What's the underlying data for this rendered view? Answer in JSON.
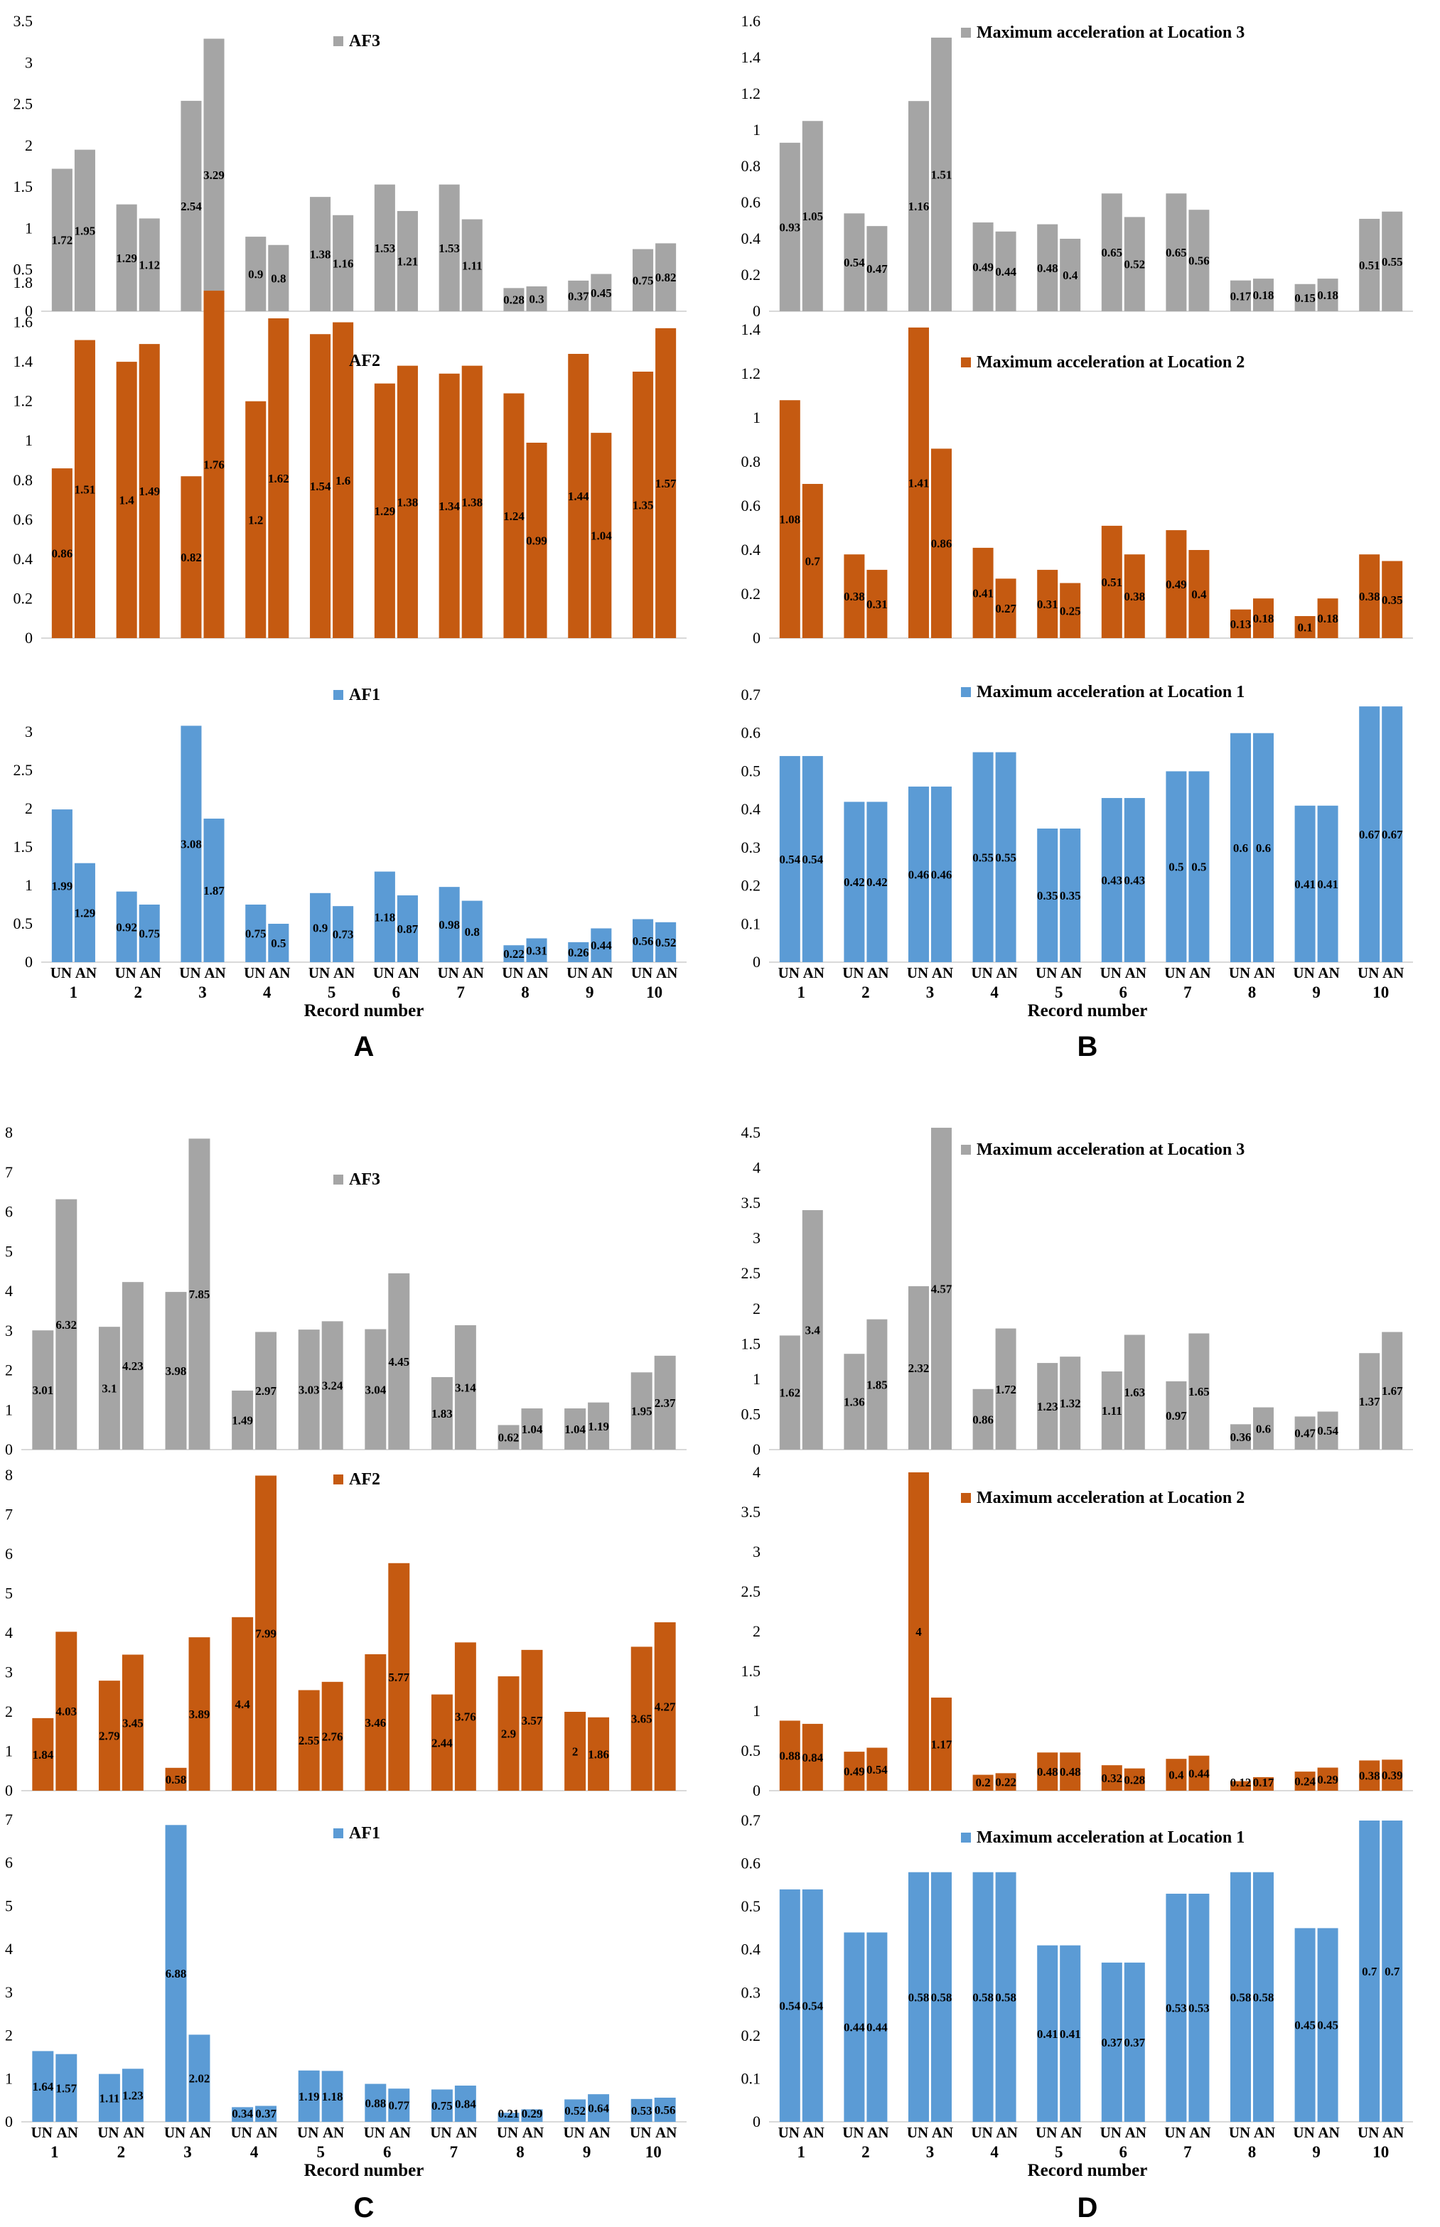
{
  "colors": {
    "gray": "#a5a5a5",
    "orange": "#c55a11",
    "blue": "#5b9bd5"
  },
  "chart_data": [
    {
      "panel": "A",
      "type": "bar",
      "title": "AF3",
      "color": "gray",
      "ylim": [
        0,
        3.5
      ],
      "ticks": [
        "0",
        "0.5",
        "1",
        "1.5",
        "2",
        "2.5",
        "3",
        "3.5"
      ],
      "categories": [
        "1",
        "2",
        "3",
        "4",
        "5",
        "6",
        "7",
        "8",
        "9",
        "10"
      ],
      "series": [
        {
          "name": "UN",
          "values": [
            1.72,
            1.29,
            2.54,
            0.9,
            1.38,
            1.53,
            1.53,
            0.28,
            0.37,
            0.75
          ]
        },
        {
          "name": "AN",
          "values": [
            1.95,
            1.12,
            3.29,
            0.8,
            1.16,
            1.21,
            1.11,
            0.3,
            0.45,
            0.82
          ]
        }
      ]
    },
    {
      "panel": "A",
      "type": "bar",
      "title": "AF2",
      "color": "orange",
      "ylim": [
        0,
        1.8
      ],
      "ticks": [
        "0",
        "0.2",
        "0.4",
        "0.6",
        "0.8",
        "1",
        "1.2",
        "1.4",
        "1.6",
        "1.8"
      ],
      "categories": [
        "1",
        "2",
        "3",
        "4",
        "5",
        "6",
        "7",
        "8",
        "9",
        "10"
      ],
      "series": [
        {
          "name": "UN",
          "values": [
            0.86,
            1.4,
            0.82,
            1.2,
            1.54,
            1.29,
            1.34,
            1.24,
            1.44,
            1.35
          ]
        },
        {
          "name": "AN",
          "values": [
            1.51,
            1.49,
            1.76,
            1.62,
            1.6,
            1.38,
            1.38,
            0.99,
            1.04,
            1.57
          ]
        }
      ]
    },
    {
      "panel": "A",
      "type": "bar",
      "title": "AF1",
      "color": "blue",
      "ylim": [
        0,
        3.5
      ],
      "ticks": [
        "0",
        "0.5",
        "1",
        "1.5",
        "2",
        "2.5",
        "3"
      ],
      "xlabel": "Record number",
      "categories": [
        "1",
        "2",
        "3",
        "4",
        "5",
        "6",
        "7",
        "8",
        "9",
        "10"
      ],
      "series": [
        {
          "name": "UN",
          "values": [
            1.99,
            0.92,
            3.08,
            0.75,
            0.9,
            1.18,
            0.98,
            0.22,
            0.26,
            0.56
          ]
        },
        {
          "name": "AN",
          "values": [
            1.29,
            0.75,
            1.87,
            0.5,
            0.73,
            0.87,
            0.8,
            0.31,
            0.44,
            0.52
          ]
        }
      ]
    },
    {
      "panel": "B",
      "type": "bar",
      "title": "Maximum acceleration at Location 3",
      "color": "gray",
      "ylim": [
        0,
        1.6
      ],
      "ticks": [
        "0",
        "0.2",
        "0.4",
        "0.6",
        "0.8",
        "1",
        "1.2",
        "1.4",
        "1.6"
      ],
      "categories": [
        "1",
        "2",
        "3",
        "4",
        "5",
        "6",
        "7",
        "8",
        "9",
        "10"
      ],
      "series": [
        {
          "name": "UN",
          "values": [
            0.93,
            0.54,
            1.16,
            0.49,
            0.48,
            0.65,
            0.65,
            0.17,
            0.15,
            0.51
          ]
        },
        {
          "name": "AN",
          "values": [
            1.05,
            0.47,
            1.51,
            0.44,
            0.4,
            0.52,
            0.56,
            0.18,
            0.18,
            0.55
          ]
        }
      ]
    },
    {
      "panel": "B",
      "type": "bar",
      "title": "Maximum acceleration at Location 2",
      "color": "orange",
      "ylim": [
        0,
        1.4
      ],
      "ticks": [
        "0",
        "0.2",
        "0.4",
        "0.6",
        "0.8",
        "1",
        "1.2",
        "1.4"
      ],
      "categories": [
        "1",
        "2",
        "3",
        "4",
        "5",
        "6",
        "7",
        "8",
        "9",
        "10"
      ],
      "series": [
        {
          "name": "UN",
          "values": [
            1.08,
            0.38,
            1.41,
            0.41,
            0.31,
            0.51,
            0.49,
            0.13,
            0.1,
            0.38
          ]
        },
        {
          "name": "AN",
          "values": [
            0.7,
            0.31,
            0.86,
            0.27,
            0.25,
            0.38,
            0.4,
            0.18,
            0.18,
            0.35
          ]
        }
      ]
    },
    {
      "panel": "B",
      "type": "bar",
      "title": "Maximum acceleration at Location 1",
      "color": "blue",
      "ylim": [
        0,
        0.7
      ],
      "ticks": [
        "0",
        "0.1",
        "0.2",
        "0.3",
        "0.4",
        "0.5",
        "0.6",
        "0.7"
      ],
      "xlabel": "Record number",
      "categories": [
        "1",
        "2",
        "3",
        "4",
        "5",
        "6",
        "7",
        "8",
        "9",
        "10"
      ],
      "series": [
        {
          "name": "UN",
          "values": [
            0.54,
            0.42,
            0.46,
            0.55,
            0.35,
            0.43,
            0.5,
            0.6,
            0.41,
            0.67
          ]
        },
        {
          "name": "AN",
          "values": [
            0.54,
            0.42,
            0.46,
            0.55,
            0.35,
            0.43,
            0.5,
            0.6,
            0.41,
            0.67
          ]
        }
      ]
    },
    {
      "panel": "C",
      "type": "bar",
      "title": "AF3",
      "color": "gray",
      "ylim": [
        0,
        8
      ],
      "ticks": [
        "0",
        "1",
        "2",
        "3",
        "4",
        "5",
        "6",
        "7",
        "8"
      ],
      "categories": [
        "1",
        "2",
        "3",
        "4",
        "5",
        "6",
        "7",
        "8",
        "9",
        "10"
      ],
      "series": [
        {
          "name": "UN",
          "values": [
            3.01,
            3.1,
            3.98,
            1.49,
            3.03,
            3.04,
            1.83,
            0.62,
            1.04,
            1.95
          ]
        },
        {
          "name": "AN",
          "values": [
            6.32,
            4.23,
            7.85,
            2.97,
            3.24,
            4.45,
            3.14,
            1.04,
            1.19,
            2.37
          ]
        }
      ]
    },
    {
      "panel": "C",
      "type": "bar",
      "title": "AF2",
      "color": "orange",
      "ylim": [
        0,
        8
      ],
      "ticks": [
        "0",
        "1",
        "2",
        "3",
        "4",
        "5",
        "6",
        "7",
        "8"
      ],
      "categories": [
        "1",
        "2",
        "3",
        "4",
        "5",
        "6",
        "7",
        "8",
        "9",
        "10"
      ],
      "series": [
        {
          "name": "UN",
          "values": [
            1.84,
            2.79,
            0.58,
            4.4,
            2.55,
            3.46,
            2.44,
            2.9,
            2,
            3.65
          ]
        },
        {
          "name": "AN",
          "values": [
            4.03,
            3.45,
            3.89,
            7.99,
            2.76,
            5.77,
            3.76,
            3.57,
            1.86,
            4.27
          ]
        }
      ]
    },
    {
      "panel": "C",
      "type": "bar",
      "title": "AF1",
      "color": "blue",
      "ylim": [
        0,
        7
      ],
      "ticks": [
        "0",
        "1",
        "2",
        "3",
        "4",
        "5",
        "6",
        "7"
      ],
      "xlabel": "Record number",
      "categories": [
        "1",
        "2",
        "3",
        "4",
        "5",
        "6",
        "7",
        "8",
        "9",
        "10"
      ],
      "series": [
        {
          "name": "UN",
          "values": [
            1.64,
            1.11,
            6.88,
            0.34,
            1.19,
            0.88,
            0.75,
            0.21,
            0.52,
            0.53
          ]
        },
        {
          "name": "AN",
          "values": [
            1.57,
            1.23,
            2.02,
            0.37,
            1.18,
            0.77,
            0.84,
            0.29,
            0.64,
            0.56
          ]
        }
      ]
    },
    {
      "panel": "D",
      "type": "bar",
      "title": "Maximum acceleration at Location 3",
      "color": "gray",
      "ylim": [
        0,
        4.5
      ],
      "ticks": [
        "0",
        "0.5",
        "1",
        "1.5",
        "2",
        "2.5",
        "3",
        "3.5",
        "4",
        "4.5"
      ],
      "categories": [
        "1",
        "2",
        "3",
        "4",
        "5",
        "6",
        "7",
        "8",
        "9",
        "10"
      ],
      "series": [
        {
          "name": "UN",
          "values": [
            1.62,
            1.36,
            2.32,
            0.86,
            1.23,
            1.11,
            0.97,
            0.36,
            0.47,
            1.37
          ]
        },
        {
          "name": "AN",
          "values": [
            3.4,
            1.85,
            4.57,
            1.72,
            1.32,
            1.63,
            1.65,
            0.6,
            0.54,
            1.67
          ]
        }
      ]
    },
    {
      "panel": "D",
      "type": "bar",
      "title": "Maximum acceleration at Location 2",
      "color": "orange",
      "ylim": [
        0,
        4
      ],
      "ticks": [
        "0",
        "0.5",
        "1",
        "1.5",
        "2",
        "2.5",
        "3",
        "3.5",
        "4"
      ],
      "categories": [
        "1",
        "2",
        "3",
        "4",
        "5",
        "6",
        "7",
        "8",
        "9",
        "10"
      ],
      "series": [
        {
          "name": "UN",
          "values": [
            0.88,
            0.49,
            4,
            0.2,
            0.48,
            0.32,
            0.4,
            0.12,
            0.24,
            0.38
          ]
        },
        {
          "name": "AN",
          "values": [
            0.84,
            0.54,
            1.17,
            0.22,
            0.48,
            0.28,
            0.44,
            0.17,
            0.29,
            0.39
          ]
        }
      ]
    },
    {
      "panel": "D",
      "type": "bar",
      "title": "Maximum acceleration at Location 1",
      "color": "blue",
      "ylim": [
        0,
        0.7
      ],
      "ticks": [
        "0",
        "0.1",
        "0.2",
        "0.3",
        "0.4",
        "0.5",
        "0.6",
        "0.7"
      ],
      "xlabel": "Record number",
      "categories": [
        "1",
        "2",
        "3",
        "4",
        "5",
        "6",
        "7",
        "8",
        "9",
        "10"
      ],
      "series": [
        {
          "name": "UN",
          "values": [
            0.54,
            0.44,
            0.58,
            0.58,
            0.41,
            0.37,
            0.53,
            0.58,
            0.45,
            0.7
          ]
        },
        {
          "name": "AN",
          "values": [
            0.54,
            0.44,
            0.58,
            0.58,
            0.41,
            0.37,
            0.53,
            0.58,
            0.45,
            0.7
          ]
        }
      ]
    }
  ],
  "pair_labels": [
    "UN",
    "AN"
  ],
  "panel_labels": [
    "A",
    "B",
    "C",
    "D"
  ]
}
